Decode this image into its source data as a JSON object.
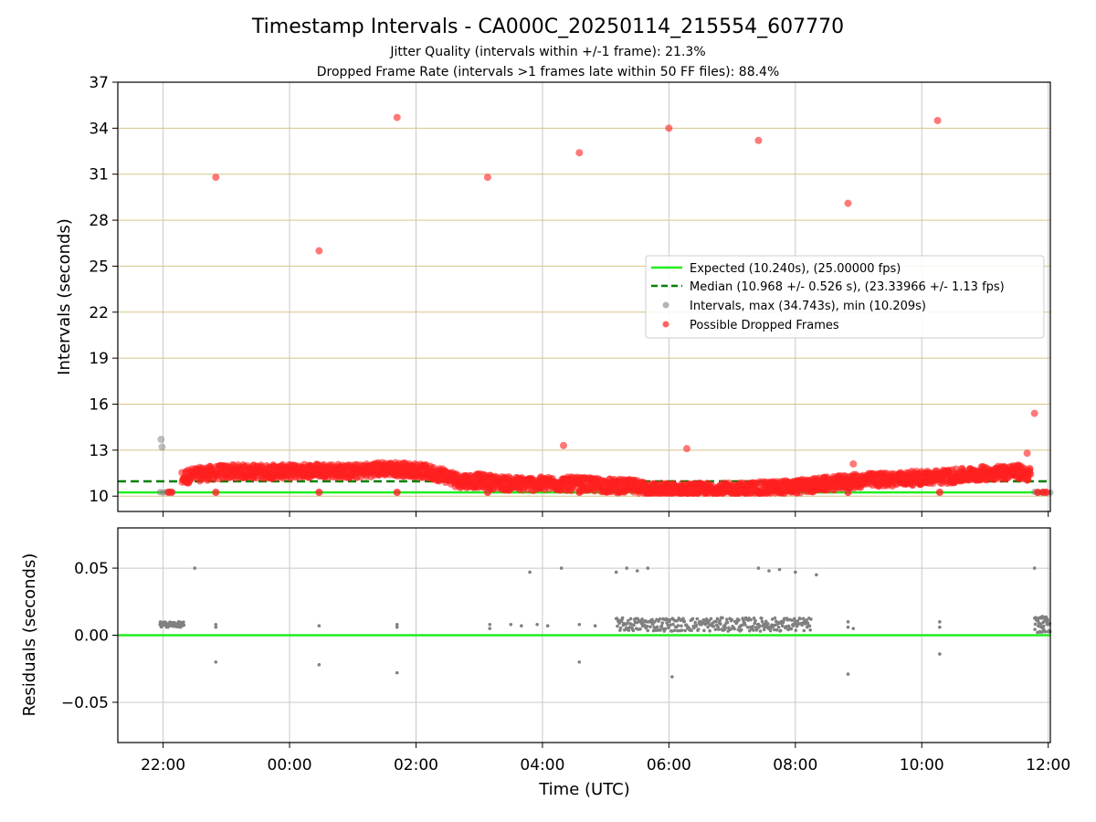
{
  "title": "Timestamp Intervals - CA000C_20250114_215554_607770",
  "subtitle1": "Jitter Quality (intervals within +/-1 frame): 21.3%",
  "subtitle2": "Dropped Frame Rate (intervals >1 frames late within 50 FF files): 88.4%",
  "colors": {
    "expected": "#22ee22",
    "median": "#008000",
    "intervals": "#808080",
    "dropped": "#ff2020",
    "ygrid": "#d6c48a",
    "xgrid": "#c8c8c8"
  },
  "chart_data": [
    {
      "type": "scatter",
      "ylabel": "Intervals (seconds)",
      "xlabel": "",
      "ylim": [
        9.0,
        37.0
      ],
      "xlim": [
        "21:17",
        "12:02"
      ],
      "grid": true,
      "yticks": [
        10,
        13,
        16,
        19,
        22,
        25,
        28,
        31,
        34,
        37
      ],
      "ytick_labels": [
        "10",
        "13",
        "16",
        "19",
        "22",
        "25",
        "28",
        "31",
        "34",
        "37"
      ],
      "xtick_positions": [
        "22:00",
        "00:00",
        "02:00",
        "04:00",
        "06:00",
        "08:00",
        "10:00",
        "12:00"
      ],
      "legend_position": "center-right",
      "legend": {
        "expected": "Expected (10.240s), (25.00000 fps)",
        "median": "Median (10.968 +/- 0.526 s), (23.33966 +/- 1.13 fps)",
        "intervals": "Intervals, max (34.743s), min (10.209s)",
        "dropped": "Possible Dropped Frames"
      },
      "expected_value": 10.24,
      "median_value": 10.968,
      "outliers": [
        {
          "x": "21:58",
          "y": 13.7
        },
        {
          "x": "21:59",
          "y": 13.2
        },
        {
          "x": "22:50",
          "y": 30.8
        },
        {
          "x": "00:28",
          "y": 26.0
        },
        {
          "x": "01:42",
          "y": 34.7
        },
        {
          "x": "03:08",
          "y": 30.8
        },
        {
          "x": "04:20",
          "y": 13.3
        },
        {
          "x": "04:35",
          "y": 32.4
        },
        {
          "x": "06:00",
          "y": 34.0
        },
        {
          "x": "06:17",
          "y": 13.1
        },
        {
          "x": "07:25",
          "y": 33.2
        },
        {
          "x": "08:50",
          "y": 29.1
        },
        {
          "x": "08:55",
          "y": 12.1
        },
        {
          "x": "10:15",
          "y": 34.5
        },
        {
          "x": "11:47",
          "y": 15.4
        },
        {
          "x": "11:40",
          "y": 12.8
        }
      ],
      "trend": [
        {
          "x": "22:18",
          "y": 11.2
        },
        {
          "x": "22:30",
          "y": 11.4
        },
        {
          "x": "23:00",
          "y": 11.6
        },
        {
          "x": "23:30",
          "y": 11.6
        },
        {
          "x": "00:00",
          "y": 11.6
        },
        {
          "x": "00:30",
          "y": 11.7
        },
        {
          "x": "01:00",
          "y": 11.6
        },
        {
          "x": "01:30",
          "y": 11.8
        },
        {
          "x": "02:00",
          "y": 11.7
        },
        {
          "x": "02:25",
          "y": 11.4
        },
        {
          "x": "02:40",
          "y": 11.0
        },
        {
          "x": "03:00",
          "y": 11.0
        },
        {
          "x": "03:30",
          "y": 10.8
        },
        {
          "x": "04:00",
          "y": 10.8
        },
        {
          "x": "04:30",
          "y": 10.8
        },
        {
          "x": "05:00",
          "y": 10.7
        },
        {
          "x": "05:30",
          "y": 10.6
        },
        {
          "x": "05:50",
          "y": 10.4
        },
        {
          "x": "07:00",
          "y": 10.4
        },
        {
          "x": "07:30",
          "y": 10.5
        },
        {
          "x": "08:00",
          "y": 10.6
        },
        {
          "x": "08:30",
          "y": 10.8
        },
        {
          "x": "09:00",
          "y": 11.0
        },
        {
          "x": "09:30",
          "y": 11.1
        },
        {
          "x": "10:00",
          "y": 11.2
        },
        {
          "x": "10:30",
          "y": 11.3
        },
        {
          "x": "11:00",
          "y": 11.5
        },
        {
          "x": "11:30",
          "y": 11.6
        },
        {
          "x": "11:43",
          "y": 11.4
        }
      ],
      "baseline_runs": [
        {
          "x0": "21:57",
          "x1": "22:10",
          "y": 10.25
        },
        {
          "x0": "05:45",
          "x1": "06:25",
          "y": 10.25
        },
        {
          "x0": "11:47",
          "x1": "12:02",
          "y": 10.25
        }
      ]
    },
    {
      "type": "scatter",
      "ylabel": "Residuals (seconds)",
      "xlabel": "Time (UTC)",
      "ylim": [
        -0.08,
        0.08
      ],
      "xlim": [
        "21:17",
        "12:02"
      ],
      "grid": true,
      "yticks": [
        0.05,
        0.0,
        -0.05
      ],
      "ytick_labels": [
        "0.05",
        "0.00",
        "−0.05"
      ],
      "xtick_labels": [
        "22:00",
        "00:00",
        "02:00",
        "04:00",
        "06:00",
        "08:00",
        "10:00",
        "12:00"
      ],
      "zero_line": 0.0,
      "points": [
        {
          "x": "22:30",
          "y": 0.05
        },
        {
          "x": "22:50",
          "y": 0.008
        },
        {
          "x": "22:50",
          "y": 0.006
        },
        {
          "x": "22:50",
          "y": -0.02
        },
        {
          "x": "00:28",
          "y": 0.007
        },
        {
          "x": "00:28",
          "y": -0.022
        },
        {
          "x": "01:42",
          "y": 0.008
        },
        {
          "x": "01:42",
          "y": 0.006
        },
        {
          "x": "01:42",
          "y": -0.028
        },
        {
          "x": "03:10",
          "y": 0.008
        },
        {
          "x": "03:10",
          "y": 0.005
        },
        {
          "x": "03:30",
          "y": 0.008
        },
        {
          "x": "03:48",
          "y": 0.047
        },
        {
          "x": "03:40",
          "y": 0.007
        },
        {
          "x": "03:55",
          "y": 0.008
        },
        {
          "x": "04:05",
          "y": 0.007
        },
        {
          "x": "04:18",
          "y": 0.05
        },
        {
          "x": "04:35",
          "y": 0.008
        },
        {
          "x": "04:35",
          "y": -0.02
        },
        {
          "x": "04:50",
          "y": 0.007
        },
        {
          "x": "05:10",
          "y": 0.047
        },
        {
          "x": "05:20",
          "y": 0.05
        },
        {
          "x": "05:30",
          "y": 0.048
        },
        {
          "x": "05:40",
          "y": 0.05
        },
        {
          "x": "06:03",
          "y": -0.031
        },
        {
          "x": "07:25",
          "y": 0.05
        },
        {
          "x": "07:35",
          "y": 0.048
        },
        {
          "x": "07:45",
          "y": 0.049
        },
        {
          "x": "08:00",
          "y": 0.047
        },
        {
          "x": "08:20",
          "y": 0.045
        },
        {
          "x": "08:50",
          "y": 0.01
        },
        {
          "x": "08:50",
          "y": 0.006
        },
        {
          "x": "08:50",
          "y": -0.029
        },
        {
          "x": "08:55",
          "y": 0.005
        },
        {
          "x": "10:17",
          "y": 0.01
        },
        {
          "x": "10:17",
          "y": 0.006
        },
        {
          "x": "10:17",
          "y": -0.014
        },
        {
          "x": "11:47",
          "y": 0.05
        }
      ],
      "clusters": [
        {
          "x0": "21:57",
          "x1": "22:20",
          "y": 0.008,
          "spread": 0.002
        },
        {
          "x0": "05:10",
          "x1": "08:15",
          "y": 0.008,
          "spread": 0.005
        },
        {
          "x0": "11:47",
          "x1": "12:02",
          "y": 0.008,
          "spread": 0.006
        }
      ]
    }
  ]
}
